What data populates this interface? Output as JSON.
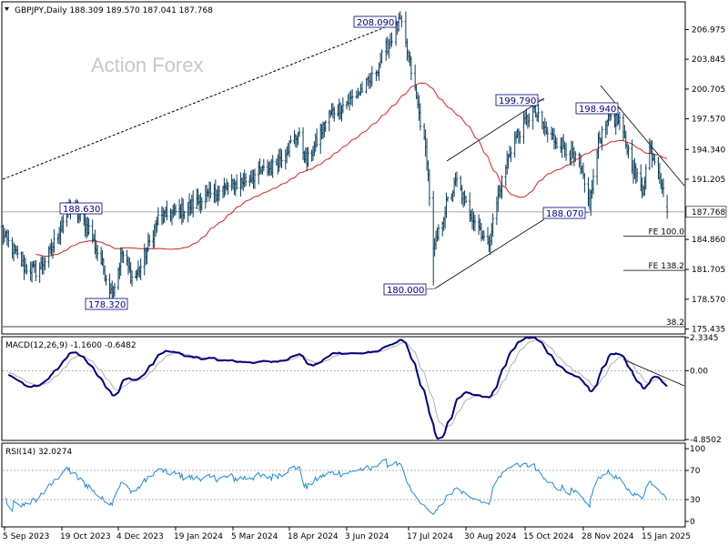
{
  "chart_data": [
    {
      "type": "candlestick",
      "header": "GBPJPY,Daily  188.309 189.570 187.041 187.768",
      "watermark": "Action Forex",
      "ylim": [
        175.0,
        209.8
      ],
      "price_ticks": [
        "206.975",
        "203.845",
        "200.705",
        "197.570",
        "194.340",
        "191.205",
        "184.860",
        "181.705",
        "178.570",
        "175.435"
      ],
      "price_tick_values": [
        206.975,
        203.845,
        200.705,
        197.57,
        194.34,
        191.205,
        184.86,
        181.705,
        178.57,
        175.435
      ],
      "last_price": "187.768",
      "last_price_value": 187.768,
      "key_points": [
        {
          "label": "188.630",
          "date": "2023-10-25",
          "price": 188.63
        },
        {
          "label": "178.320",
          "date": "2023-11-29",
          "price": 178.32
        },
        {
          "label": "208.090",
          "date": "2024-07-11",
          "price": 208.09
        },
        {
          "label": "180.000",
          "date": "2024-08-05",
          "price": 180.0
        },
        {
          "label": "199.790",
          "date": "2024-10-21",
          "price": 199.79
        },
        {
          "label": "188.070",
          "date": "2024-12-03",
          "price": 188.07
        },
        {
          "label": "198.940",
          "date": "2024-12-18",
          "price": 198.94
        }
      ],
      "fib_levels": [
        {
          "label": "FE 100.0",
          "price": 185.2
        },
        {
          "label": "FE 138.2",
          "price": 181.6
        },
        {
          "label": "38.2",
          "price": 175.4
        }
      ],
      "moving_average": "55-day SMA (red)"
    },
    {
      "type": "line",
      "title": "MACD(12,26,9) -1.1600 -0.6482",
      "ylim": [
        -4.85,
        2.33
      ],
      "ticks": [
        "2.3345",
        "0.00",
        "-4.8502"
      ],
      "tick_values": [
        2.3345,
        0.0,
        -4.8502
      ],
      "current_label": "0.00"
    },
    {
      "type": "line",
      "title": "RSI(14) 32.0274",
      "ylim": [
        0,
        100
      ],
      "ticks": [
        "100",
        "70",
        "30",
        "0"
      ],
      "tick_values": [
        100,
        70,
        30,
        0
      ]
    }
  ],
  "x_axis": {
    "labels": [
      "5 Sep 2023",
      "19 Oct 2023",
      "4 Dec 2023",
      "19 Jan 2024",
      "5 Mar 2024",
      "18 Apr 2024",
      "3 Jun 2024",
      "17 Jul 2024",
      "30 Aug 2024",
      "15 Oct 2024",
      "28 Nov 2024",
      "15 Jan 2025"
    ],
    "dates": [
      "2023-09-05",
      "2023-10-19",
      "2023-12-04",
      "2024-01-19",
      "2024-03-05",
      "2024-04-18",
      "2024-06-03",
      "2024-07-17",
      "2024-08-30",
      "2024-10-15",
      "2024-11-28",
      "2025-01-15"
    ]
  },
  "price_anchors": [
    [
      "2023-09-01",
      186.0
    ],
    [
      "2023-09-08",
      184.5
    ],
    [
      "2023-09-20",
      182.0
    ],
    [
      "2023-09-30",
      181.5
    ],
    [
      "2023-10-10",
      183.5
    ],
    [
      "2023-10-25",
      188.4
    ],
    [
      "2023-11-10",
      186.0
    ],
    [
      "2023-11-20",
      182.5
    ],
    [
      "2023-11-29",
      179.0
    ],
    [
      "2023-12-07",
      183.5
    ],
    [
      "2023-12-16",
      180.5
    ],
    [
      "2023-12-22",
      182.0
    ],
    [
      "2024-01-05",
      187.0
    ],
    [
      "2024-01-25",
      188.0
    ],
    [
      "2024-02-15",
      189.5
    ],
    [
      "2024-03-05",
      190.5
    ],
    [
      "2024-03-20",
      191.5
    ],
    [
      "2024-04-05",
      192.5
    ],
    [
      "2024-04-25",
      196.0
    ],
    [
      "2024-05-02",
      193.0
    ],
    [
      "2024-05-20",
      198.0
    ],
    [
      "2024-06-05",
      199.5
    ],
    [
      "2024-06-20",
      201.5
    ],
    [
      "2024-07-01",
      205.0
    ],
    [
      "2024-07-11",
      207.8
    ],
    [
      "2024-07-20",
      202.0
    ],
    [
      "2024-07-31",
      193.5
    ],
    [
      "2024-08-05",
      183.5
    ],
    [
      "2024-08-15",
      188.5
    ],
    [
      "2024-08-23",
      191.0
    ],
    [
      "2024-08-30",
      188.5
    ],
    [
      "2024-09-10",
      186.0
    ],
    [
      "2024-09-16",
      184.0
    ],
    [
      "2024-09-25",
      190.0
    ],
    [
      "2024-10-05",
      195.0
    ],
    [
      "2024-10-21",
      198.5
    ],
    [
      "2024-11-01",
      196.0
    ],
    [
      "2024-11-15",
      194.5
    ],
    [
      "2024-11-25",
      192.5
    ],
    [
      "2024-12-03",
      188.5
    ],
    [
      "2024-12-10",
      195.0
    ],
    [
      "2024-12-18",
      198.2
    ],
    [
      "2024-12-27",
      197.0
    ],
    [
      "2025-01-08",
      192.0
    ],
    [
      "2025-01-14",
      190.0
    ],
    [
      "2025-01-20",
      194.5
    ],
    [
      "2025-01-27",
      192.5
    ],
    [
      "2025-02-03",
      187.8
    ]
  ]
}
